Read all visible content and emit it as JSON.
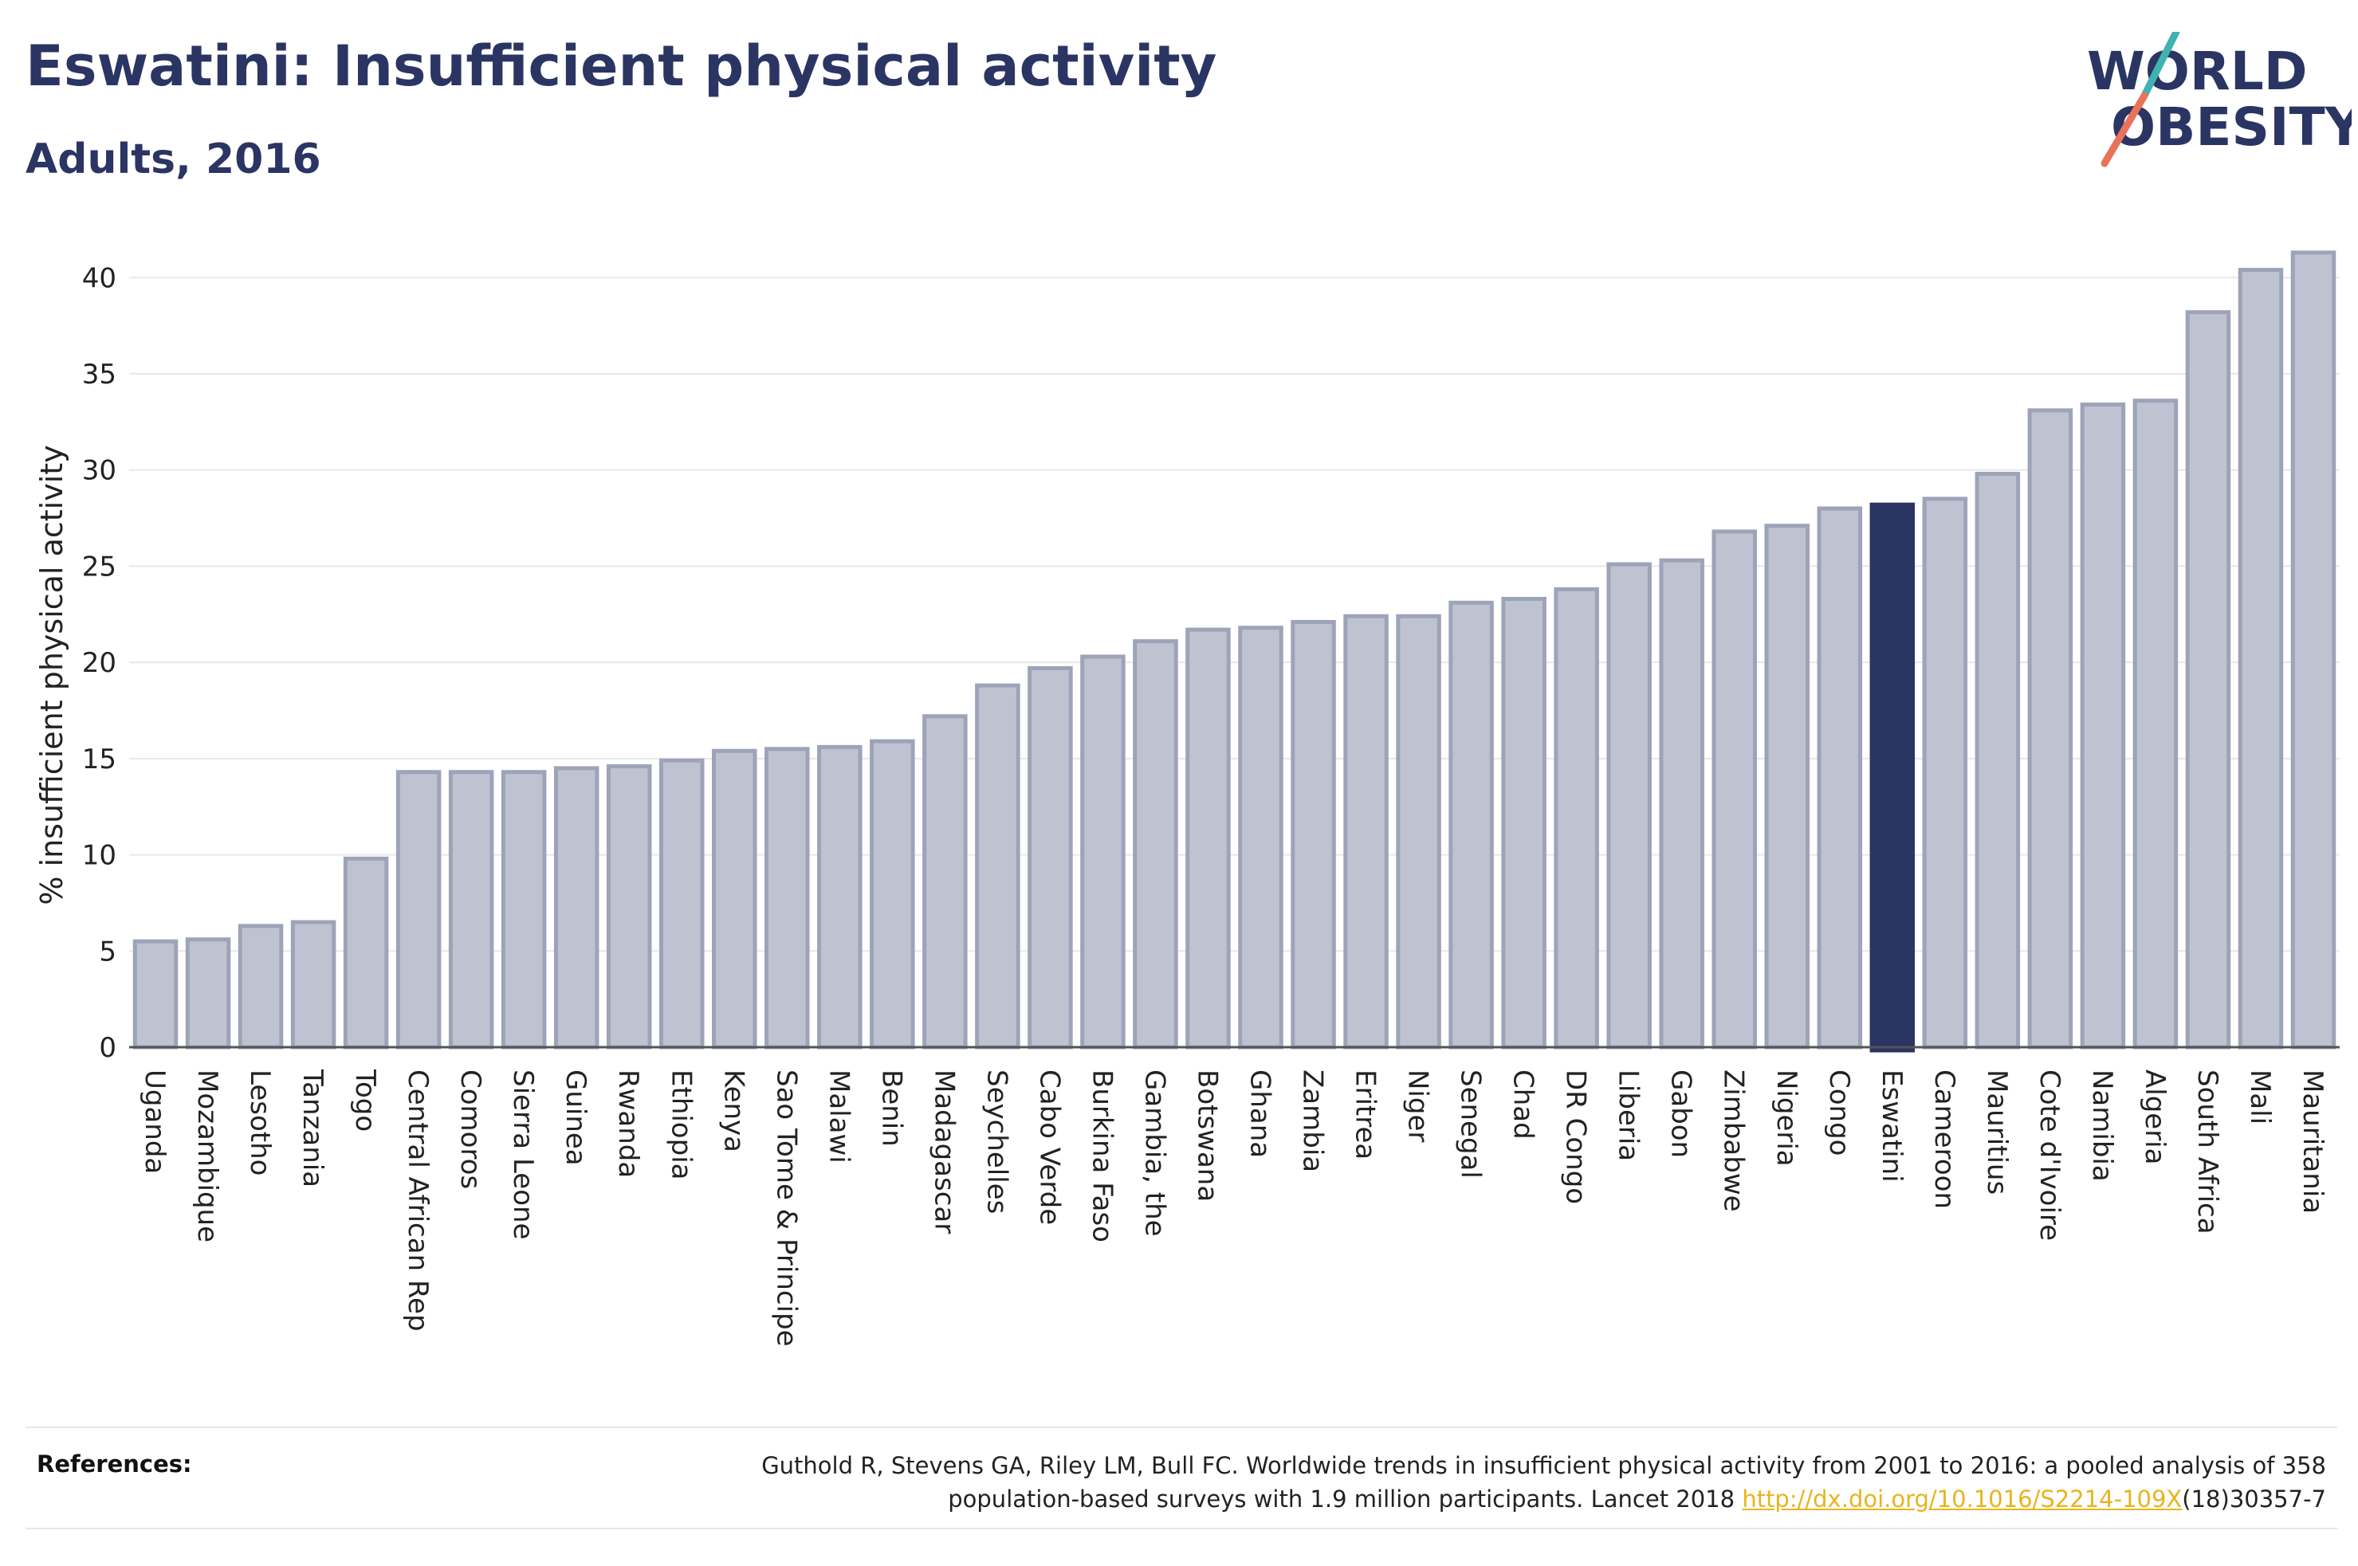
{
  "header": {
    "title": "Eswatini: Insufficient physical activity",
    "subtitle": "Adults, 2016"
  },
  "logo": {
    "line1": "WORLD",
    "line2": "OBESITY",
    "text_color": "#2b3563",
    "slash_colors": [
      "#3fb3b0",
      "#e8735a"
    ]
  },
  "chart_data": {
    "type": "bar",
    "title": "Eswatini: Insufficient physical activity",
    "subtitle": "Adults, 2016",
    "xlabel": "",
    "ylabel": "% insufficient physical activity",
    "ylim": [
      0,
      42
    ],
    "yticks": [
      0,
      5,
      10,
      15,
      20,
      25,
      30,
      35,
      40
    ],
    "grid": true,
    "highlight": "Eswatini",
    "bar_color": "#bfc3d1",
    "bar_edge_color": "#9da3b8",
    "highlight_color": "#2b3563",
    "categories": [
      "Uganda",
      "Mozambique",
      "Lesotho",
      "Tanzania",
      "Togo",
      "Central African Rep",
      "Comoros",
      "Sierra Leone",
      "Guinea",
      "Rwanda",
      "Ethiopia",
      "Kenya",
      "Sao Tome & Principe",
      "Malawi",
      "Benin",
      "Madagascar",
      "Seychelles",
      "Cabo Verde",
      "Burkina Faso",
      "Gambia, the",
      "Botswana",
      "Ghana",
      "Zambia",
      "Eritrea",
      "Niger",
      "Senegal",
      "Chad",
      "DR Congo",
      "Liberia",
      "Gabon",
      "Zimbabwe",
      "Nigeria",
      "Congo",
      "Eswatini",
      "Cameroon",
      "Mauritius",
      "Cote d'Ivoire",
      "Namibia",
      "Algeria",
      "South Africa",
      "Mali",
      "Mauritania"
    ],
    "values": [
      5.5,
      5.6,
      6.3,
      6.5,
      9.8,
      14.3,
      14.3,
      14.3,
      14.5,
      14.6,
      14.9,
      15.4,
      15.5,
      15.6,
      15.9,
      17.2,
      18.8,
      19.7,
      20.3,
      21.1,
      21.7,
      21.8,
      22.1,
      22.4,
      22.4,
      23.1,
      23.3,
      23.8,
      25.1,
      25.3,
      26.8,
      27.1,
      28.0,
      28.2,
      28.5,
      29.8,
      33.1,
      33.4,
      33.6,
      38.2,
      40.4,
      41.3
    ]
  },
  "footer": {
    "references_label": "References:",
    "reference_line1": "Guthold R, Stevens GA, Riley LM, Bull FC. Worldwide trends in insufficient physical activity from 2001 to 2016: a pooled analysis of 358",
    "reference_line2_prefix": "population-based surveys with 1.9 million participants. Lancet 2018 ",
    "reference_link": "http://dx.doi.org/10.1016/S2214-109X",
    "reference_line2_suffix": "(18)30357-7"
  }
}
